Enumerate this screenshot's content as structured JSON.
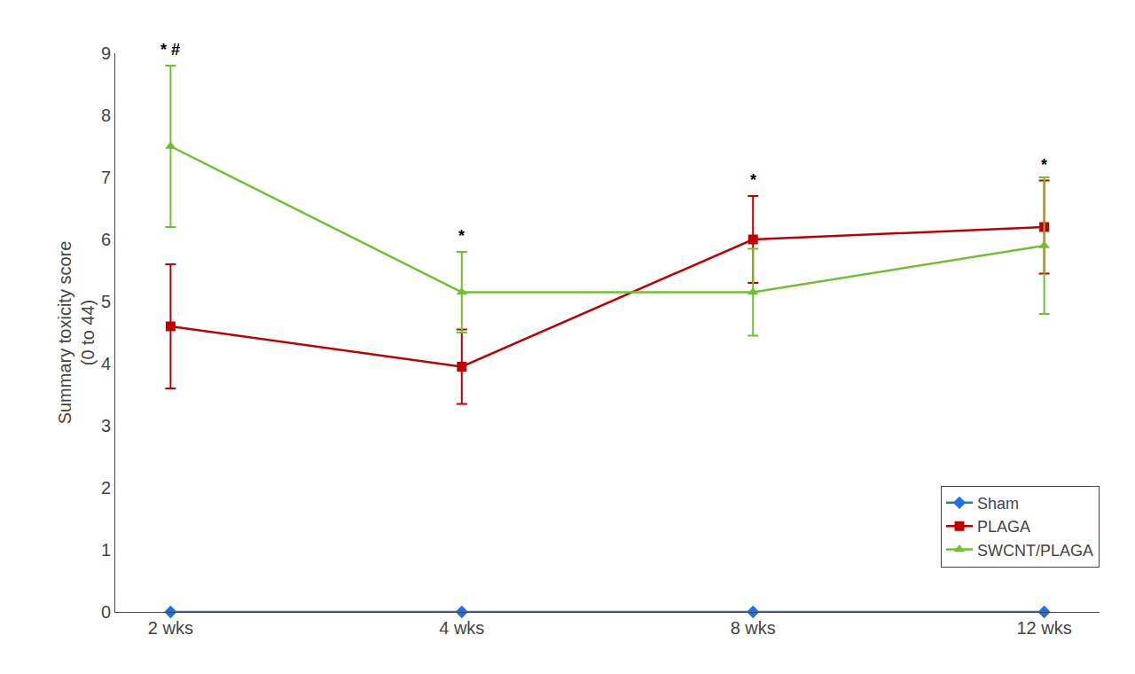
{
  "chart_data": {
    "type": "line",
    "categories": [
      "2 wks",
      "4 wks",
      "8 wks",
      "12 wks"
    ],
    "series": [
      {
        "name": "Sham",
        "color": "#1E6FE8",
        "marker": "diamond",
        "values": [
          0,
          0,
          0,
          0
        ],
        "errors": [
          0,
          0,
          0,
          0
        ]
      },
      {
        "name": "PLAGA",
        "color": "#C00000",
        "marker": "square",
        "values": [
          4.6,
          3.95,
          6.0,
          6.2
        ],
        "errors": [
          1.0,
          0.6,
          0.7,
          0.75
        ]
      },
      {
        "name": "SWCNT/PLAGA",
        "color": "#70C030",
        "marker": "triangle-up",
        "values": [
          7.5,
          5.15,
          5.15,
          5.9
        ],
        "errors": [
          1.3,
          0.65,
          0.7,
          1.1
        ]
      }
    ],
    "ylabel": "Summary toxicity score\n(0 to 44)",
    "ylim": [
      0,
      9
    ],
    "yticks": [
      0,
      1,
      2,
      3,
      4,
      5,
      6,
      7,
      8,
      9
    ],
    "grid": false,
    "legend": "lower right",
    "annotations": [
      {
        "text": "* #",
        "category": "2 wks",
        "series": "SWCNT/PLAGA"
      },
      {
        "text": "*",
        "category": "4 wks",
        "series": "SWCNT/PLAGA"
      },
      {
        "text": "*",
        "category": "8 wks",
        "series": "PLAGA"
      },
      {
        "text": "*",
        "category": "12 wks",
        "series": "PLAGA"
      }
    ]
  }
}
